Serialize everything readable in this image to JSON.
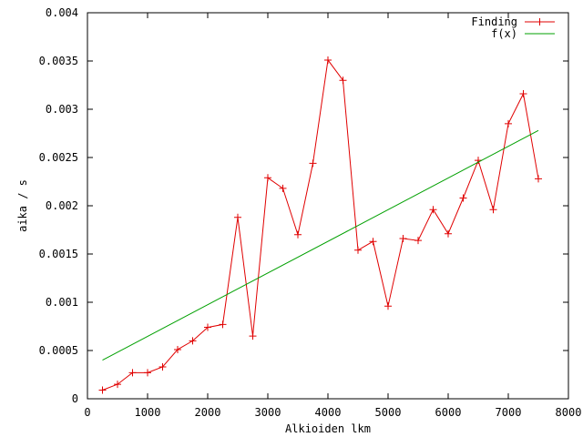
{
  "chart_data": {
    "type": "line",
    "title": "",
    "xlabel": "Alkioiden lkm",
    "ylabel": "aika / s",
    "xlim": [
      0,
      8000
    ],
    "ylim": [
      0,
      0.004
    ],
    "x_ticks": [
      0,
      1000,
      2000,
      3000,
      4000,
      5000,
      6000,
      7000,
      8000
    ],
    "x_tick_labels": [
      "0",
      "1000",
      "2000",
      "3000",
      "4000",
      "5000",
      "6000",
      "7000",
      "8000"
    ],
    "y_ticks": [
      0,
      0.0005,
      0.001,
      0.0015,
      0.002,
      0.0025,
      0.003,
      0.0035,
      0.004
    ],
    "y_tick_labels": [
      "0",
      "0.0005",
      "0.001",
      "0.0015",
      "0.002",
      "0.0025",
      "0.003",
      "0.0035",
      "0.004"
    ],
    "grid": false,
    "legend_position": "top-right",
    "series": [
      {
        "name": "Finding",
        "style": "linespoints",
        "marker": "plus",
        "color": "#e00000",
        "x": [
          250,
          500,
          750,
          1000,
          1250,
          1500,
          1750,
          2000,
          2250,
          2500,
          2750,
          3000,
          3250,
          3500,
          3750,
          4000,
          4250,
          4500,
          4750,
          5000,
          5250,
          5500,
          5750,
          6000,
          6250,
          6500,
          6750,
          7000,
          7250,
          7500
        ],
        "y": [
          9e-05,
          0.00015,
          0.00027,
          0.00027,
          0.00033,
          0.00051,
          0.0006,
          0.00074,
          0.00077,
          0.00188,
          0.00065,
          0.00229,
          0.00218,
          0.0017,
          0.00244,
          0.00351,
          0.0033,
          0.00154,
          0.00163,
          0.00096,
          0.00166,
          0.00164,
          0.00196,
          0.00171,
          0.00208,
          0.00247,
          0.00196,
          0.00285,
          0.00316,
          0.00228
        ]
      },
      {
        "name": "f(x)",
        "style": "lines",
        "color": "#00a000",
        "x": [
          250,
          7500
        ],
        "y": [
          0.0004,
          0.00278
        ]
      }
    ]
  }
}
